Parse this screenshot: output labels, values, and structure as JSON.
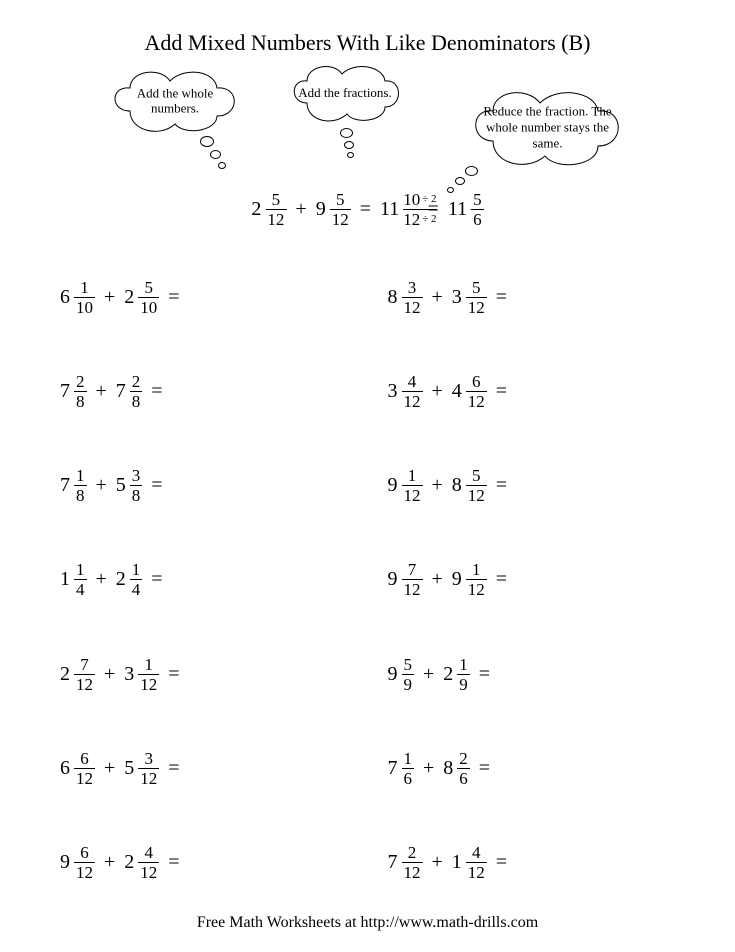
{
  "title": "Add Mixed Numbers With Like Denominators (B)",
  "clouds": {
    "c1": "Add the whole numbers.",
    "c2": "Add the fractions.",
    "c3": "Reduce the fraction. The whole number stays the same."
  },
  "example": {
    "a_whole": "2",
    "a_num": "5",
    "a_den": "12",
    "b_whole": "9",
    "b_num": "5",
    "b_den": "12",
    "sum_whole": "11",
    "sum_num": "10",
    "sum_den": "12",
    "div": "÷ 2",
    "final_whole": "11",
    "final_num": "5",
    "final_den": "6"
  },
  "problems": [
    {
      "a_whole": "6",
      "a_num": "1",
      "a_den": "10",
      "b_whole": "2",
      "b_num": "5",
      "b_den": "10"
    },
    {
      "a_whole": "8",
      "a_num": "3",
      "a_den": "12",
      "b_whole": "3",
      "b_num": "5",
      "b_den": "12"
    },
    {
      "a_whole": "7",
      "a_num": "2",
      "a_den": "8",
      "b_whole": "7",
      "b_num": "2",
      "b_den": "8"
    },
    {
      "a_whole": "3",
      "a_num": "4",
      "a_den": "12",
      "b_whole": "4",
      "b_num": "6",
      "b_den": "12"
    },
    {
      "a_whole": "7",
      "a_num": "1",
      "a_den": "8",
      "b_whole": "5",
      "b_num": "3",
      "b_den": "8"
    },
    {
      "a_whole": "9",
      "a_num": "1",
      "a_den": "12",
      "b_whole": "8",
      "b_num": "5",
      "b_den": "12"
    },
    {
      "a_whole": "1",
      "a_num": "1",
      "a_den": "4",
      "b_whole": "2",
      "b_num": "1",
      "b_den": "4"
    },
    {
      "a_whole": "9",
      "a_num": "7",
      "a_den": "12",
      "b_whole": "9",
      "b_num": "1",
      "b_den": "12"
    },
    {
      "a_whole": "2",
      "a_num": "7",
      "a_den": "12",
      "b_whole": "3",
      "b_num": "1",
      "b_den": "12"
    },
    {
      "a_whole": "9",
      "a_num": "5",
      "a_den": "9",
      "b_whole": "2",
      "b_num": "1",
      "b_den": "9"
    },
    {
      "a_whole": "6",
      "a_num": "6",
      "a_den": "12",
      "b_whole": "5",
      "b_num": "3",
      "b_den": "12"
    },
    {
      "a_whole": "7",
      "a_num": "1",
      "a_den": "6",
      "b_whole": "8",
      "b_num": "2",
      "b_den": "6"
    },
    {
      "a_whole": "9",
      "a_num": "6",
      "a_den": "12",
      "b_whole": "2",
      "b_num": "4",
      "b_den": "12"
    },
    {
      "a_whole": "7",
      "a_num": "2",
      "a_den": "12",
      "b_whole": "1",
      "b_num": "4",
      "b_den": "12"
    }
  ],
  "footer": "Free Math Worksheets at http://www.math-drills.com",
  "ops": {
    "plus": "+",
    "eq": "="
  }
}
